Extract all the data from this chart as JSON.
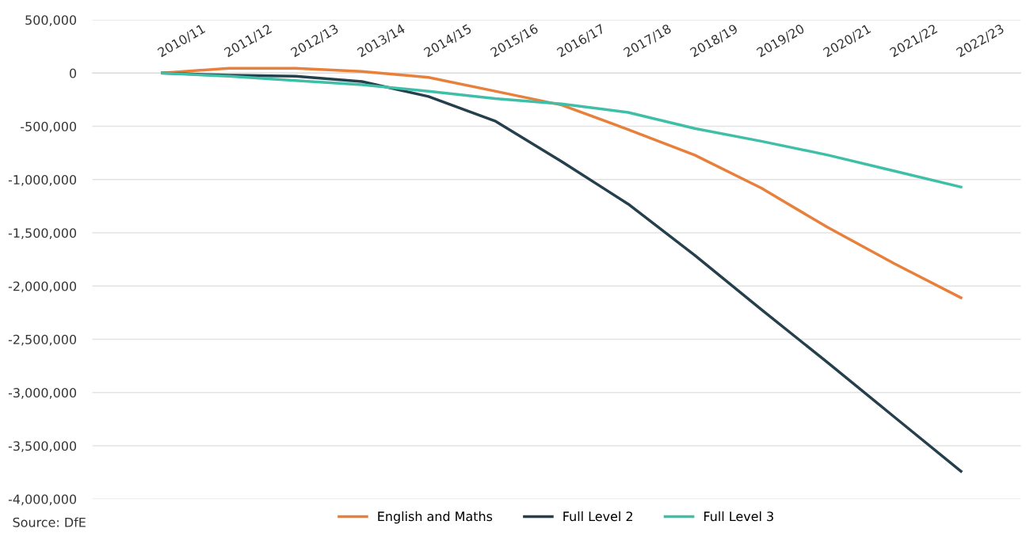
{
  "chart_data": {
    "type": "line",
    "categories": [
      "2010/11",
      "2011/12",
      "2012/13",
      "2013/14",
      "2014/15",
      "2015/16",
      "2016/17",
      "2017/18",
      "2018/19",
      "2019/20",
      "2020/21",
      "2021/22",
      "2022/23"
    ],
    "series": [
      {
        "name": "English and Maths",
        "color": "#e8803c",
        "values": [
          0,
          45000,
          45000,
          15000,
          -40000,
          -170000,
          -300000,
          -530000,
          -770000,
          -1080000,
          -1450000,
          -1790000,
          -2110000
        ]
      },
      {
        "name": "Full Level 2",
        "color": "#263f4c",
        "values": [
          0,
          -20000,
          -30000,
          -80000,
          -220000,
          -450000,
          -830000,
          -1230000,
          -1710000,
          -2220000,
          -2720000,
          -3230000,
          -3740000
        ]
      },
      {
        "name": "Full Level 3",
        "color": "#3fbfa8",
        "values": [
          0,
          -30000,
          -70000,
          -110000,
          -170000,
          -240000,
          -290000,
          -370000,
          -520000,
          -640000,
          -770000,
          -920000,
          -1070000
        ]
      }
    ],
    "ylim": [
      -4000000,
      500000
    ],
    "yticks": [
      {
        "value": 500000,
        "label": "500,000"
      },
      {
        "value": 0,
        "label": "0"
      },
      {
        "value": -500000,
        "label": "-500,000"
      },
      {
        "value": -1000000,
        "label": "-1,000,000"
      },
      {
        "value": -1500000,
        "label": "-1,500,000"
      },
      {
        "value": -2000000,
        "label": "-2,000,000"
      },
      {
        "value": -2500000,
        "label": "-2,500,000"
      },
      {
        "value": -3000000,
        "label": "-3,000,000"
      },
      {
        "value": -3500000,
        "label": "-3,500,000"
      },
      {
        "value": -4000000,
        "label": "-4,000,000"
      }
    ],
    "grid": "y",
    "legend": "bottom",
    "marker": "none",
    "line_style": "solid",
    "annotations": [
      "Source: DfE"
    ]
  }
}
